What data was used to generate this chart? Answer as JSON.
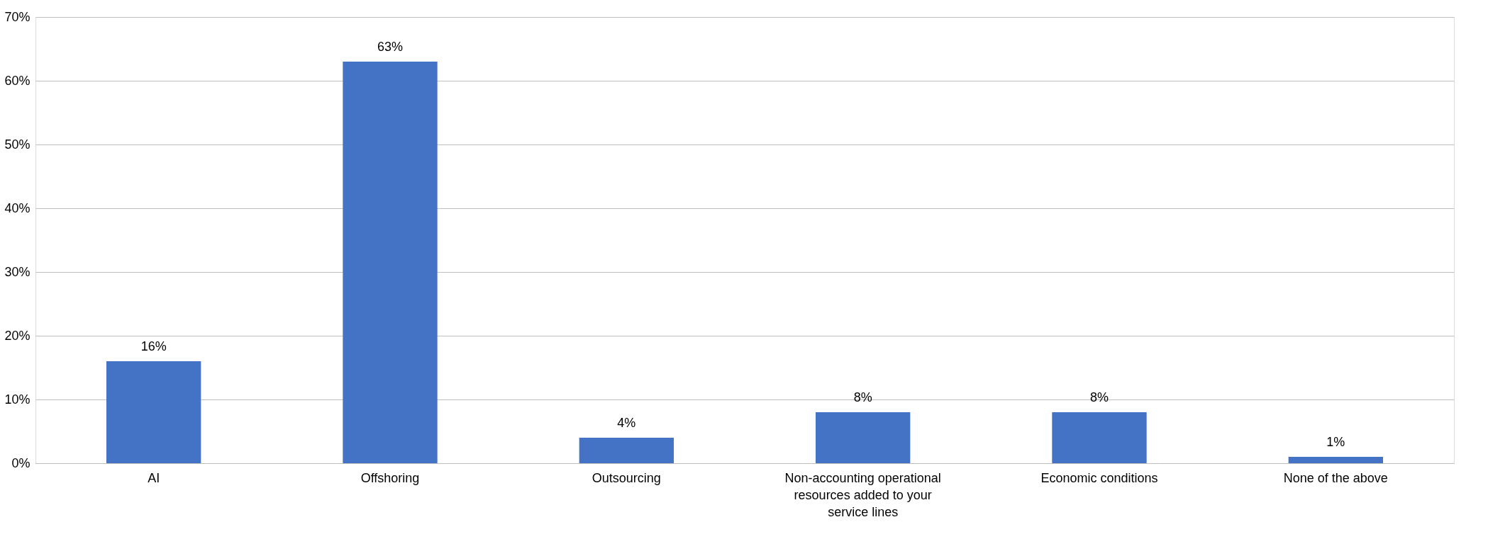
{
  "chart_data": {
    "type": "bar",
    "categories": [
      "AI",
      "Offshoring",
      "Outsourcing",
      "Non-accounting operational resources added to your service lines",
      "Economic conditions",
      "None of the above"
    ],
    "values": [
      16,
      63,
      4,
      8,
      8,
      1
    ],
    "value_labels": [
      "16%",
      "63%",
      "4%",
      "8%",
      "8%",
      "1%"
    ],
    "color": "#4472c4",
    "ylim": [
      0,
      70
    ],
    "yticks": [
      {
        "value": 0,
        "label": "0%"
      },
      {
        "value": 10,
        "label": "10%"
      },
      {
        "value": 20,
        "label": "20%"
      },
      {
        "value": 30,
        "label": "30%"
      },
      {
        "value": 40,
        "label": "40%"
      },
      {
        "value": 50,
        "label": "50%"
      },
      {
        "value": 60,
        "label": "60%"
      },
      {
        "value": 70,
        "label": "70%"
      }
    ],
    "grid": "y"
  }
}
